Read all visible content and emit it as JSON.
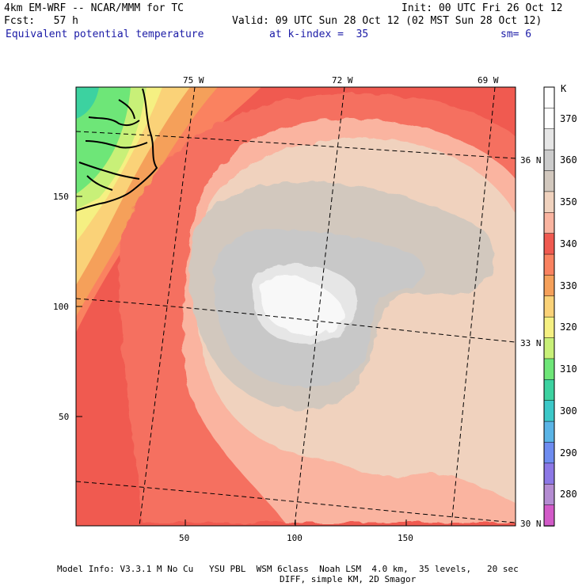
{
  "header": {
    "model": "4km EM-WRF -- NCAR/MMM for TC",
    "init": "Init: 00 UTC Fri 26 Oct 12",
    "fcst": "Fcst:   57 h",
    "valid": "Valid: 09 UTC Sun 28 Oct 12 (02 MST Sun 28 Oct 12)",
    "field": "Equivalent potential temperature",
    "kindex": "at k-index =  35",
    "sm": "sm= 6"
  },
  "axes": {
    "x_ticks": [
      {
        "label": "50",
        "value": 50
      },
      {
        "label": "100",
        "value": 100
      },
      {
        "label": "150",
        "value": 150
      }
    ],
    "y_ticks": [
      {
        "label": "50",
        "value": 50
      },
      {
        "label": "100",
        "value": 100
      },
      {
        "label": "150",
        "value": 150
      }
    ],
    "lon_labels": [
      "75 W",
      "72 W",
      "69 W"
    ],
    "lat_labels": [
      "36 N",
      "33 N",
      "30 N"
    ]
  },
  "colorbar": {
    "unit": "K",
    "levels": [
      {
        "label": "",
        "color": "#ffffff"
      },
      {
        "label": "370",
        "color": "#ffffff"
      },
      {
        "label": "",
        "color": "#e6e6e6"
      },
      {
        "label": "360",
        "color": "#cccccc"
      },
      {
        "label": "",
        "color": "#d2c8be"
      },
      {
        "label": "350",
        "color": "#f0d2be"
      },
      {
        "label": "",
        "color": "#fab4a0"
      },
      {
        "label": "340",
        "color": "#f05a50"
      },
      {
        "label": "",
        "color": "#fa8260"
      },
      {
        "label": "330",
        "color": "#f5a05a"
      },
      {
        "label": "",
        "color": "#fad278"
      },
      {
        "label": "320",
        "color": "#f5f082"
      },
      {
        "label": "",
        "color": "#c8f078"
      },
      {
        "label": "310",
        "color": "#6ee678"
      },
      {
        "label": "",
        "color": "#3cd2a0"
      },
      {
        "label": "300",
        "color": "#3cc8c8"
      },
      {
        "label": "",
        "color": "#5ab4e6"
      },
      {
        "label": "290",
        "color": "#6e8cf0"
      },
      {
        "label": "",
        "color": "#8c78e6"
      },
      {
        "label": "280",
        "color": "#b48cd2"
      },
      {
        "label": "",
        "color": "#d25ac8"
      }
    ]
  },
  "colors": {
    "warm_red": "#f05a50",
    "light_red": "#fa7a66",
    "salmon": "#fab4a0",
    "peach": "#f0d2be",
    "tan": "#d2c8be",
    "gray": "#cccccc",
    "light_gray": "#e6e6e6",
    "white": "#f8f8f8",
    "coast_green": "#6ee678",
    "coast_yellow": "#f5f082"
  },
  "footer": {
    "line1": "Model Info: V3.3.1 M No Cu   YSU PBL  WSM 6class  Noah LSM  4.0 km,  35 levels,   20 sec",
    "line2": "DIFF, simple KM, 2D Smagor"
  }
}
